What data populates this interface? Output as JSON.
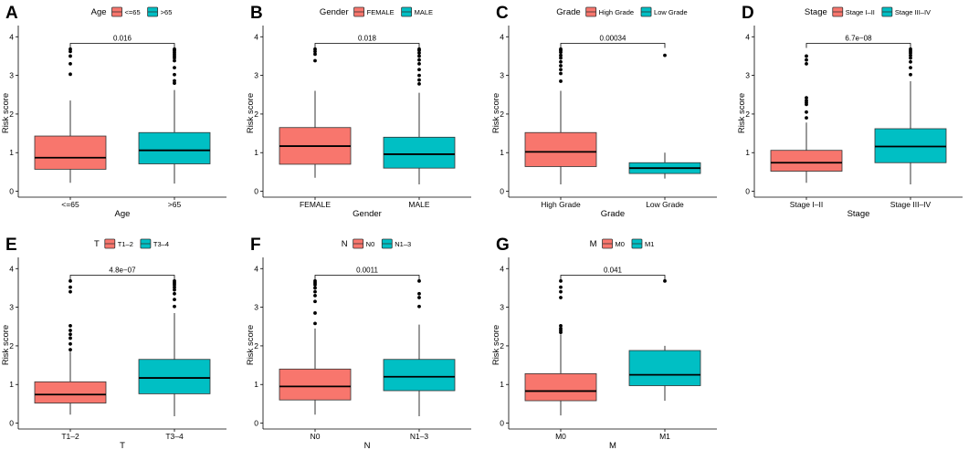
{
  "colors": {
    "group1": "#F8766D",
    "group2": "#00BFC4",
    "line": "#000000"
  },
  "chart_data": [
    {
      "letter": "A",
      "type": "box",
      "legend_title": "Age",
      "xlabel": "Age",
      "ylabel": "Risk score",
      "ylim": [
        0,
        4
      ],
      "yticks": [
        "0",
        "1",
        "2",
        "3",
        "4"
      ],
      "pvalue": "0.016",
      "groups": [
        {
          "name": "<=65",
          "min": 0.22,
          "q1": 0.57,
          "median": 0.87,
          "q3": 1.43,
          "max": 2.35,
          "outliers": [
            3.03,
            3.3,
            3.5,
            3.62,
            3.68
          ]
        },
        {
          "name": ">65",
          "min": 0.2,
          "q1": 0.71,
          "median": 1.06,
          "q3": 1.52,
          "max": 2.62,
          "outliers": [
            2.8,
            2.86,
            3.02,
            3.2,
            3.38,
            3.45,
            3.5,
            3.55,
            3.6,
            3.65,
            3.68
          ]
        }
      ]
    },
    {
      "letter": "B",
      "type": "box",
      "legend_title": "Gender",
      "xlabel": "Gender",
      "ylabel": "Risk score",
      "ylim": [
        0,
        4
      ],
      "yticks": [
        "0",
        "1",
        "2",
        "3",
        "4"
      ],
      "pvalue": "0.018",
      "groups": [
        {
          "name": "FEMALE",
          "min": 0.35,
          "q1": 0.7,
          "median": 1.17,
          "q3": 1.65,
          "max": 2.6,
          "outliers": [
            3.38,
            3.55,
            3.62,
            3.68
          ]
        },
        {
          "name": "MALE",
          "min": 0.18,
          "q1": 0.6,
          "median": 0.96,
          "q3": 1.4,
          "max": 2.55,
          "outliers": [
            2.78,
            2.88,
            3.0,
            3.15,
            3.3,
            3.4,
            3.5,
            3.58,
            3.65,
            3.68
          ]
        }
      ]
    },
    {
      "letter": "C",
      "type": "box",
      "legend_title": "Grade",
      "xlabel": "Grade",
      "ylabel": "Risk score",
      "ylim": [
        0,
        4
      ],
      "yticks": [
        "0",
        "1",
        "2",
        "3",
        "4"
      ],
      "pvalue": "0.00034",
      "groups": [
        {
          "name": "High Grade",
          "min": 0.18,
          "q1": 0.64,
          "median": 1.02,
          "q3": 1.52,
          "max": 2.6,
          "outliers": [
            2.85,
            3.05,
            3.15,
            3.25,
            3.35,
            3.45,
            3.52,
            3.6,
            3.65,
            3.68
          ]
        },
        {
          "name": "Low Grade",
          "min": 0.33,
          "q1": 0.46,
          "median": 0.6,
          "q3": 0.74,
          "max": 1.0,
          "outliers": [
            3.52
          ]
        }
      ]
    },
    {
      "letter": "D",
      "type": "box",
      "legend_title": "Stage",
      "xlabel": "Stage",
      "ylabel": "Risk score",
      "ylim": [
        0,
        4
      ],
      "yticks": [
        "0",
        "1",
        "2",
        "3",
        "4"
      ],
      "pvalue": "6.7e−08",
      "groups": [
        {
          "name": "Stage I–II",
          "min": 0.22,
          "q1": 0.52,
          "median": 0.74,
          "q3": 1.06,
          "max": 1.78,
          "outliers": [
            1.9,
            2.05,
            2.25,
            2.3,
            2.35,
            2.42,
            3.3,
            3.4,
            3.5
          ]
        },
        {
          "name": "Stage III–IV",
          "min": 0.18,
          "q1": 0.74,
          "median": 1.16,
          "q3": 1.62,
          "max": 2.85,
          "outliers": [
            3.02,
            3.2,
            3.35,
            3.45,
            3.52,
            3.58,
            3.63,
            3.68
          ]
        }
      ]
    },
    {
      "letter": "E",
      "type": "box",
      "legend_title": "T",
      "xlabel": "T",
      "ylabel": "Risk score",
      "ylim": [
        0,
        4
      ],
      "yticks": [
        "0",
        "1",
        "2",
        "3",
        "4"
      ],
      "pvalue": "4.8e−07",
      "groups": [
        {
          "name": "T1–2",
          "min": 0.22,
          "q1": 0.52,
          "median": 0.74,
          "q3": 1.07,
          "max": 1.85,
          "outliers": [
            1.9,
            2.05,
            2.2,
            2.3,
            2.4,
            2.52,
            3.4,
            3.52,
            3.68
          ]
        },
        {
          "name": "T3–4",
          "min": 0.18,
          "q1": 0.76,
          "median": 1.17,
          "q3": 1.65,
          "max": 2.85,
          "outliers": [
            3.02,
            3.2,
            3.35,
            3.45,
            3.52,
            3.58,
            3.63,
            3.68
          ]
        }
      ]
    },
    {
      "letter": "F",
      "type": "box",
      "legend_title": "N",
      "xlabel": "N",
      "ylabel": "Risk score",
      "ylim": [
        0,
        4
      ],
      "yticks": [
        "0",
        "1",
        "2",
        "3",
        "4"
      ],
      "pvalue": "0.0011",
      "groups": [
        {
          "name": "N0",
          "min": 0.22,
          "q1": 0.6,
          "median": 0.95,
          "q3": 1.4,
          "max": 2.45,
          "outliers": [
            2.58,
            2.85,
            3.15,
            3.3,
            3.4,
            3.5,
            3.58,
            3.63,
            3.68
          ]
        },
        {
          "name": "N1–3",
          "min": 0.18,
          "q1": 0.84,
          "median": 1.2,
          "q3": 1.65,
          "max": 2.55,
          "outliers": [
            3.02,
            3.25,
            3.35,
            3.68
          ]
        }
      ]
    },
    {
      "letter": "G",
      "type": "box",
      "legend_title": "M",
      "xlabel": "M",
      "ylabel": "Risk score",
      "ylim": [
        0,
        4
      ],
      "yticks": [
        "0",
        "1",
        "2",
        "3",
        "4"
      ],
      "pvalue": "0.041",
      "groups": [
        {
          "name": "M0",
          "min": 0.2,
          "q1": 0.58,
          "median": 0.83,
          "q3": 1.28,
          "max": 2.3,
          "outliers": [
            2.35,
            2.4,
            2.45,
            2.52,
            3.25,
            3.4,
            3.52,
            3.68
          ]
        },
        {
          "name": "M1",
          "min": 0.58,
          "q1": 0.97,
          "median": 1.25,
          "q3": 1.88,
          "max": 2.0,
          "outliers": [
            3.68
          ]
        }
      ]
    }
  ]
}
